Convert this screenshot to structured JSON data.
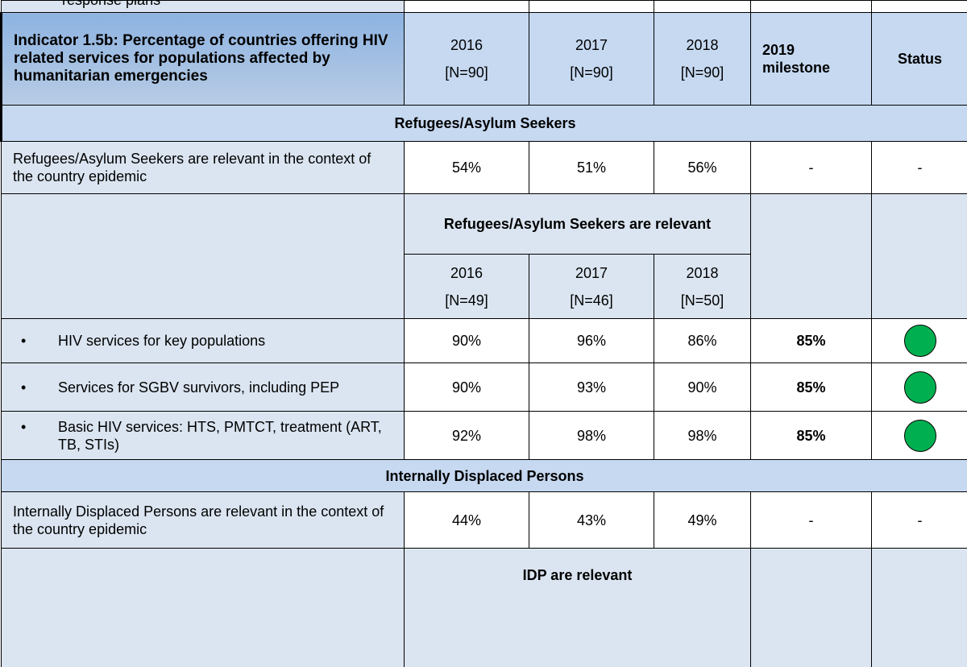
{
  "top_row": {
    "text": "response plans"
  },
  "header": {
    "indicator": "Indicator 1.5b: Percentage of countries offering HIV related services for populations affected by humanitarian emergencies",
    "years": [
      {
        "year": "2016",
        "n": "[N=90]"
      },
      {
        "year": "2017",
        "n": "[N=90]"
      },
      {
        "year": "2018",
        "n": "[N=90]"
      }
    ],
    "milestone": "2019 milestone",
    "status": "Status"
  },
  "sections": [
    {
      "title": "Refugees/Asylum Seekers",
      "relevance": {
        "label": "Refugees/Asylum Seekers are relevant in the context of the country epidemic",
        "values": [
          "54%",
          "51%",
          "56%"
        ],
        "milestone": "-",
        "status": "-"
      },
      "subheader": {
        "title": "Refugees/Asylum Seekers are relevant",
        "years": [
          {
            "year": "2016",
            "n": "[N=49]"
          },
          {
            "year": "2017",
            "n": "[N=46]"
          },
          {
            "year": "2018",
            "n": "[N=50]"
          }
        ]
      },
      "rows": [
        {
          "label": "HIV services for key populations",
          "values": [
            "90%",
            "96%",
            "86%"
          ],
          "milestone": "85%"
        },
        {
          "label": "Services for SGBV survivors, including PEP",
          "values": [
            "90%",
            "93%",
            "90%"
          ],
          "milestone": "85%"
        },
        {
          "label": "Basic HIV services: HTS, PMTCT, treatment (ART, TB, STIs)",
          "values": [
            "92%",
            "98%",
            "98%"
          ],
          "milestone": "85%"
        }
      ]
    },
    {
      "title": "Internally Displaced Persons",
      "relevance": {
        "label": "Internally Displaced Persons are relevant in the context of the country epidemic",
        "values": [
          "44%",
          "43%",
          "49%"
        ],
        "milestone": "-",
        "status": "-"
      },
      "subheader": {
        "title": "IDP are relevant"
      }
    }
  ]
}
